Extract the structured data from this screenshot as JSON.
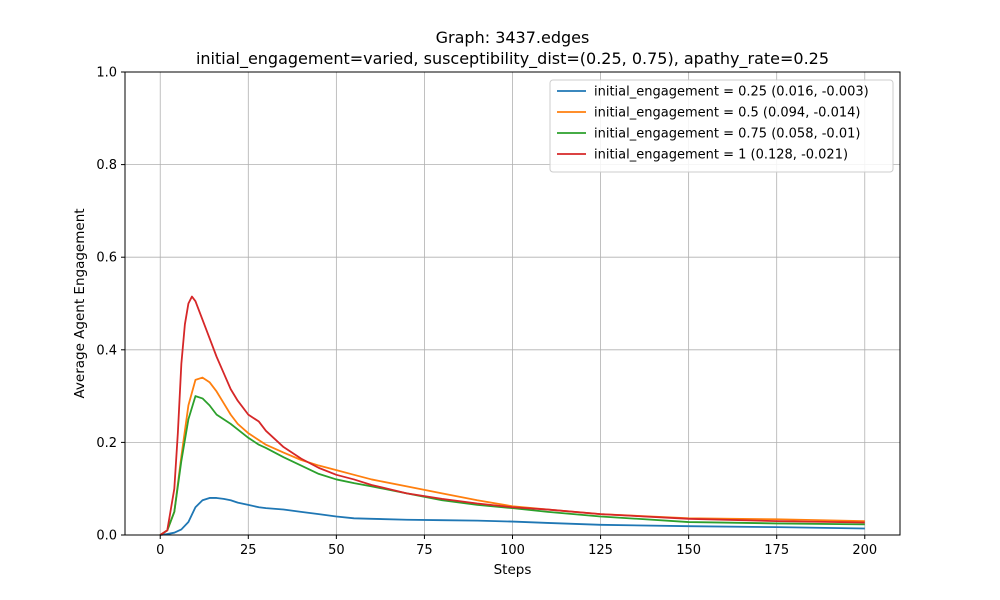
{
  "chart_data": {
    "type": "line",
    "title": "Graph: 3437.edges",
    "subtitle": "initial_engagement=varied, susceptibility_dist=(0.25, 0.75), apathy_rate=0.25",
    "xlabel": "Steps",
    "ylabel": "Average Agent Engagement",
    "xlim": [
      -10,
      210
    ],
    "ylim": [
      0,
      1.0
    ],
    "xticks": [
      0,
      25,
      50,
      75,
      100,
      125,
      150,
      175,
      200
    ],
    "yticks": [
      0.0,
      0.2,
      0.4,
      0.6,
      0.8,
      1.0
    ],
    "xtick_labels": [
      "0",
      "25",
      "50",
      "75",
      "100",
      "125",
      "150",
      "175",
      "200"
    ],
    "ytick_labels": [
      "0.0",
      "0.2",
      "0.4",
      "0.6",
      "0.8",
      "1.0"
    ],
    "grid": true,
    "legend_position": "top-right",
    "series": [
      {
        "name": "initial_engagement = 0.25 (0.016, -0.003)",
        "color": "#1f77b4",
        "x": [
          0,
          2,
          4,
          6,
          8,
          10,
          12,
          14,
          16,
          18,
          20,
          22,
          25,
          28,
          30,
          35,
          40,
          45,
          50,
          55,
          60,
          70,
          80,
          90,
          100,
          110,
          125,
          150,
          175,
          200
        ],
        "y": [
          0.0,
          0.002,
          0.005,
          0.012,
          0.028,
          0.06,
          0.075,
          0.08,
          0.08,
          0.078,
          0.075,
          0.07,
          0.065,
          0.06,
          0.058,
          0.055,
          0.05,
          0.045,
          0.04,
          0.036,
          0.035,
          0.033,
          0.032,
          0.031,
          0.029,
          0.026,
          0.022,
          0.019,
          0.017,
          0.014
        ]
      },
      {
        "name": "initial_engagement = 0.5 (0.094, -0.014)",
        "color": "#ff7f0e",
        "x": [
          0,
          2,
          4,
          6,
          8,
          10,
          12,
          14,
          16,
          18,
          20,
          22,
          25,
          28,
          30,
          35,
          40,
          45,
          50,
          55,
          60,
          70,
          80,
          90,
          100,
          110,
          125,
          150,
          175,
          200
        ],
        "y": [
          0.0,
          0.01,
          0.05,
          0.17,
          0.28,
          0.335,
          0.34,
          0.33,
          0.31,
          0.285,
          0.26,
          0.24,
          0.22,
          0.205,
          0.195,
          0.178,
          0.162,
          0.15,
          0.14,
          0.13,
          0.12,
          0.105,
          0.09,
          0.075,
          0.062,
          0.055,
          0.045,
          0.036,
          0.034,
          0.03
        ]
      },
      {
        "name": "initial_engagement = 0.75 (0.058, -0.01)",
        "color": "#2ca02c",
        "x": [
          0,
          2,
          4,
          6,
          8,
          10,
          12,
          14,
          16,
          18,
          20,
          22,
          25,
          28,
          30,
          35,
          40,
          45,
          50,
          55,
          60,
          70,
          80,
          90,
          100,
          110,
          125,
          150,
          175,
          200
        ],
        "y": [
          0.0,
          0.01,
          0.05,
          0.16,
          0.25,
          0.3,
          0.295,
          0.28,
          0.26,
          0.25,
          0.24,
          0.228,
          0.21,
          0.195,
          0.188,
          0.168,
          0.15,
          0.132,
          0.12,
          0.112,
          0.105,
          0.09,
          0.075,
          0.065,
          0.058,
          0.05,
          0.04,
          0.028,
          0.025,
          0.023
        ]
      },
      {
        "name": "initial_engagement = 1 (0.128, -0.021)",
        "color": "#d62728",
        "x": [
          0,
          2,
          4,
          5,
          6,
          7,
          8,
          9,
          10,
          12,
          14,
          16,
          18,
          20,
          22,
          25,
          28,
          30,
          35,
          40,
          45,
          50,
          55,
          60,
          70,
          80,
          90,
          100,
          110,
          125,
          150,
          175,
          200
        ],
        "y": [
          0.0,
          0.01,
          0.1,
          0.22,
          0.37,
          0.455,
          0.5,
          0.515,
          0.505,
          0.465,
          0.425,
          0.385,
          0.35,
          0.315,
          0.29,
          0.26,
          0.245,
          0.225,
          0.19,
          0.165,
          0.145,
          0.13,
          0.12,
          0.108,
          0.09,
          0.078,
          0.068,
          0.06,
          0.055,
          0.045,
          0.035,
          0.03,
          0.027
        ]
      }
    ]
  }
}
